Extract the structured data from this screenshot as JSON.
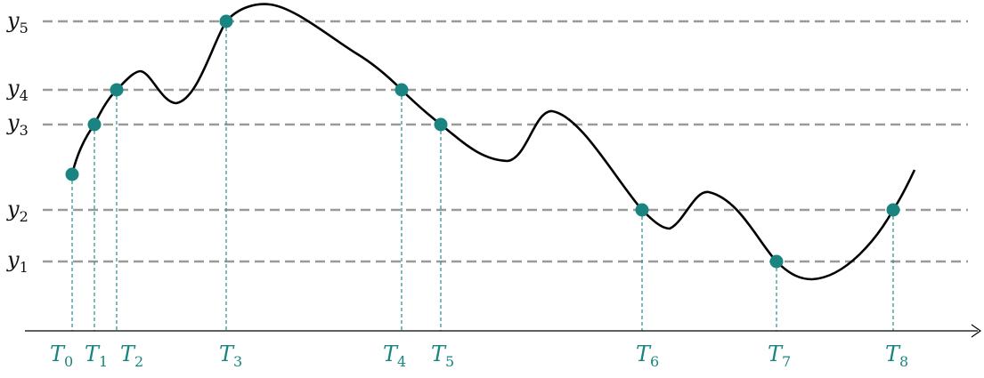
{
  "levels": [
    {
      "base": "y",
      "sub": "5"
    },
    {
      "base": "y",
      "sub": "4"
    },
    {
      "base": "y",
      "sub": "3"
    },
    {
      "base": "y",
      "sub": "2"
    },
    {
      "base": "y",
      "sub": "1"
    }
  ],
  "times": [
    {
      "base": "T",
      "sub": "0"
    },
    {
      "base": "T",
      "sub": "1"
    },
    {
      "base": "T",
      "sub": "2"
    },
    {
      "base": "T",
      "sub": "3"
    },
    {
      "base": "T",
      "sub": "4"
    },
    {
      "base": "T",
      "sub": "5"
    },
    {
      "base": "T",
      "sub": "6"
    },
    {
      "base": "T",
      "sub": "7"
    },
    {
      "base": "T",
      "sub": "8"
    }
  ],
  "colors": {
    "accent": "#1a8580",
    "level_line": "#9a9a9a",
    "curve": "#000000"
  }
}
